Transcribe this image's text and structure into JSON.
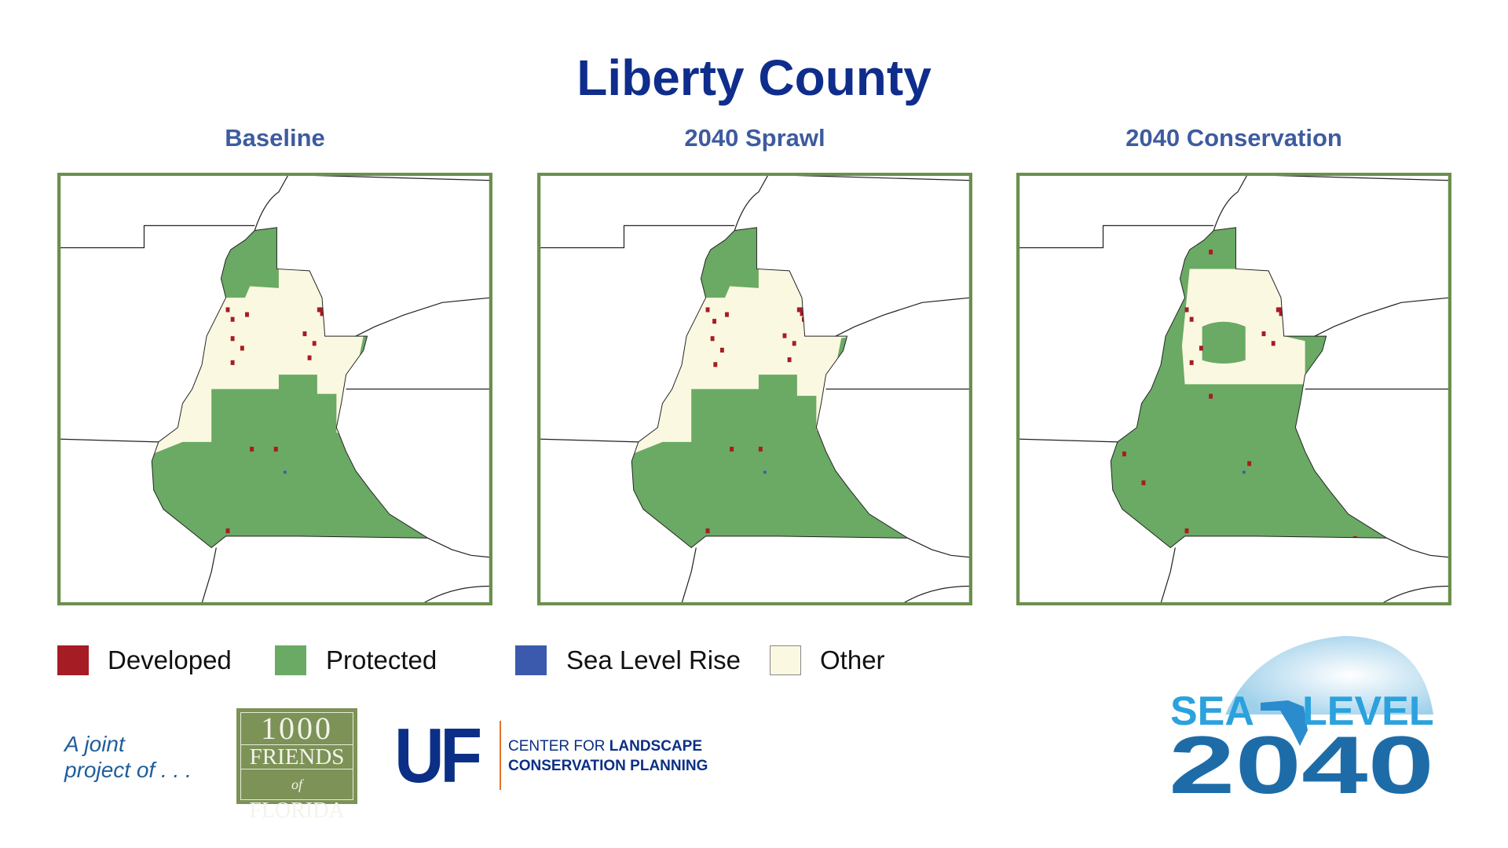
{
  "header": {
    "title": "Liberty County"
  },
  "panels": [
    {
      "title": "Baseline"
    },
    {
      "title": "2040 Sprawl"
    },
    {
      "title": "2040 Conservation"
    }
  ],
  "legend": [
    {
      "label": "Developed",
      "color": "#a61c24"
    },
    {
      "label": "Protected",
      "color": "#6aaa64"
    },
    {
      "label": "Sea Level Rise",
      "color": "#3c5aad"
    },
    {
      "label": "Other",
      "color": "#fbf8e1"
    }
  ],
  "footer": {
    "joint": [
      "A joint",
      "project of . . ."
    ],
    "friends": [
      "1000",
      "FRIENDS",
      "of",
      "FLORIDA"
    ],
    "uf": "UF",
    "center": [
      "CENTER FOR",
      "LANDSCAPE",
      "CONSERVATION PLANNING"
    ],
    "sea_level": [
      "SEA",
      "LEVEL",
      "2040"
    ]
  }
}
